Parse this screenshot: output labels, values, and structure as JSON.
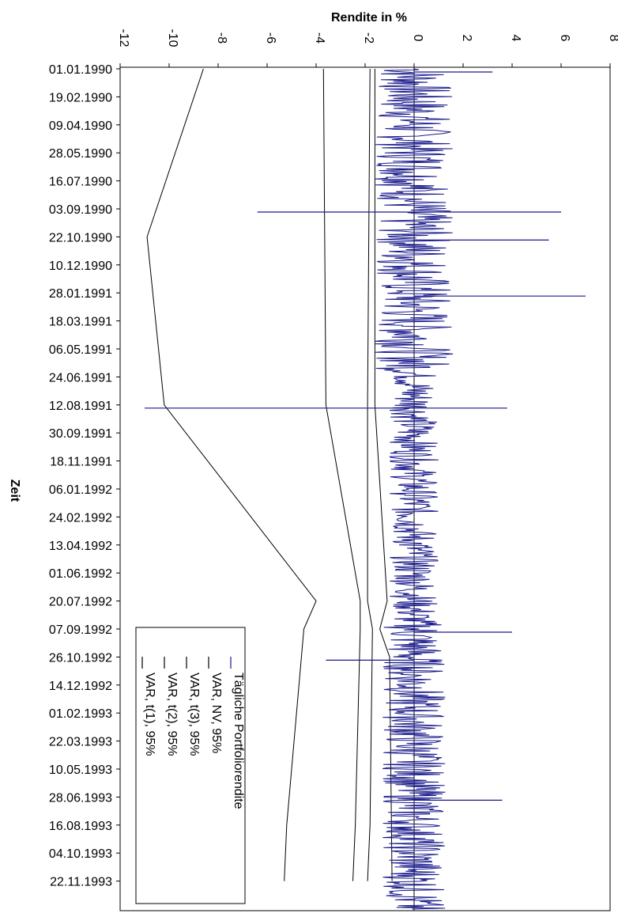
{
  "chart_data": {
    "type": "line",
    "orientation": "rotated-90-clockwise",
    "title": "",
    "xlabel": "Rendite in %",
    "ylabel": "Zeit",
    "xlim": [
      -12,
      8
    ],
    "x_ticks": [
      "-12",
      "-10",
      "-8",
      "-6",
      "-4",
      "-2",
      "0",
      "2",
      "4",
      "6",
      "8"
    ],
    "time_ticks": [
      "01.01.1990",
      "19.02.1990",
      "09.04.1990",
      "28.05.1990",
      "16.07.1990",
      "03.09.1990",
      "22.10.1990",
      "10.12.1990",
      "28.01.1991",
      "18.03.1991",
      "06.05.1991",
      "24.06.1991",
      "12.08.1991",
      "30.09.1991",
      "18.11.1991",
      "06.01.1992",
      "24.02.1992",
      "13.04.1992",
      "01.06.1992",
      "20.07.1992",
      "07.09.1992",
      "26.10.1992",
      "14.12.1992",
      "01.02.1993",
      "22.03.1993",
      "10.05.1993",
      "28.06.1993",
      "16.08.1993",
      "04.10.1993",
      "22.11.1993"
    ],
    "grid": false,
    "legend_position": "bottom-left",
    "legend": [
      "Tägliche Portfoliorendite",
      "VAR, NV, 95%",
      "VAR, t(3), 95%",
      "VAR, t(2), 95%",
      "VAR, t(1), 95%"
    ],
    "series": [
      {
        "name": "Tägliche Portfoliorendite",
        "color": "#1a1a8c",
        "description_note": "daily returns, mostly within -2..2 %",
        "spikes": [
          {
            "date": "01.01.1990",
            "value": 3.2
          },
          {
            "date": "03.09.1990",
            "value": -6.4
          },
          {
            "date": "03.09.1990",
            "value": 6.0
          },
          {
            "date": "22.10.1990",
            "value": 5.5
          },
          {
            "date": "28.01.1991",
            "value": 7.0
          },
          {
            "date": "12.08.1991",
            "value": -11.0
          },
          {
            "date": "12.08.1991",
            "value": 3.8
          },
          {
            "date": "07.09.1992",
            "value": 4.0
          },
          {
            "date": "26.10.1992",
            "value": -3.6
          },
          {
            "date": "28.06.1993",
            "value": 3.6
          }
        ]
      },
      {
        "name": "VAR, NV, 95%",
        "color": "#000000",
        "points": [
          [
            "01.01.1990",
            -1.6
          ],
          [
            "12.08.1991",
            -1.6
          ],
          [
            "20.07.1992",
            -1.1
          ],
          [
            "07.09.1992",
            -1.4
          ],
          [
            "26.10.1992",
            -1.0
          ],
          [
            "22.11.1993",
            -0.9
          ]
        ]
      },
      {
        "name": "VAR, t(3), 95%",
        "color": "#000000",
        "points": [
          [
            "01.01.1990",
            -1.8
          ],
          [
            "12.08.1991",
            -1.9
          ],
          [
            "20.07.1992",
            -1.9
          ],
          [
            "07.09.1992",
            -1.7
          ],
          [
            "16.08.1993",
            -1.8
          ],
          [
            "22.11.1993",
            -1.9
          ]
        ]
      },
      {
        "name": "VAR, t(2), 95%",
        "color": "#000000",
        "points": [
          [
            "01.01.1990",
            -3.7
          ],
          [
            "12.08.1991",
            -3.6
          ],
          [
            "20.07.1992",
            -2.2
          ],
          [
            "07.09.1992",
            -2.2
          ],
          [
            "16.08.1993",
            -2.4
          ],
          [
            "22.11.1993",
            -2.5
          ]
        ]
      },
      {
        "name": "VAR, t(1), 95%",
        "color": "#000000",
        "points": [
          [
            "01.01.1990",
            -8.6
          ],
          [
            "22.10.1990",
            -10.9
          ],
          [
            "12.08.1991",
            -10.2
          ],
          [
            "20.07.1992",
            -4.0
          ],
          [
            "07.09.1992",
            -4.5
          ],
          [
            "16.08.1993",
            -5.2
          ],
          [
            "22.11.1993",
            -5.3
          ]
        ]
      }
    ]
  }
}
